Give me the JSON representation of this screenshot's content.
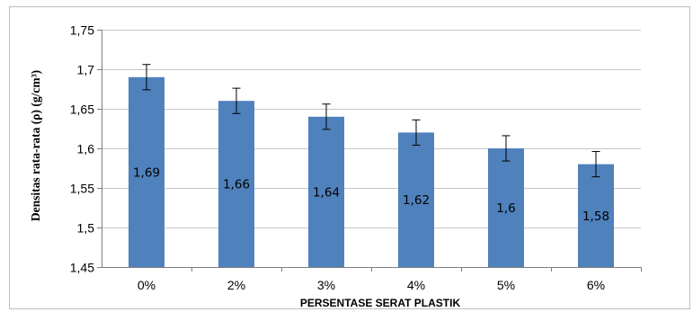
{
  "chart_data": {
    "type": "bar",
    "categories": [
      "0%",
      "2%",
      "3%",
      "4%",
      "5%",
      "6%"
    ],
    "values": [
      1.69,
      1.66,
      1.64,
      1.62,
      1.6,
      1.58
    ],
    "data_labels": [
      "1,69",
      "1,66",
      "1,64",
      "1,62",
      "1,6",
      "1,58"
    ],
    "error": [
      0.016,
      0.016,
      0.016,
      0.016,
      0.016,
      0.016
    ],
    "xlabel": "PERSENTASE SERAT PLASTIK",
    "ylabel": "Densitas rata-rata (ρ) (g/cm³)",
    "ylim": [
      1.45,
      1.75
    ],
    "yticks": [
      1.45,
      1.5,
      1.55,
      1.6,
      1.65,
      1.7,
      1.75
    ],
    "ytick_labels": [
      "1,45",
      "1,5",
      "1,55",
      "1,6",
      "1,65",
      "1,7",
      "1,75"
    ],
    "grid": true,
    "bar_color": "#4f81bd"
  }
}
